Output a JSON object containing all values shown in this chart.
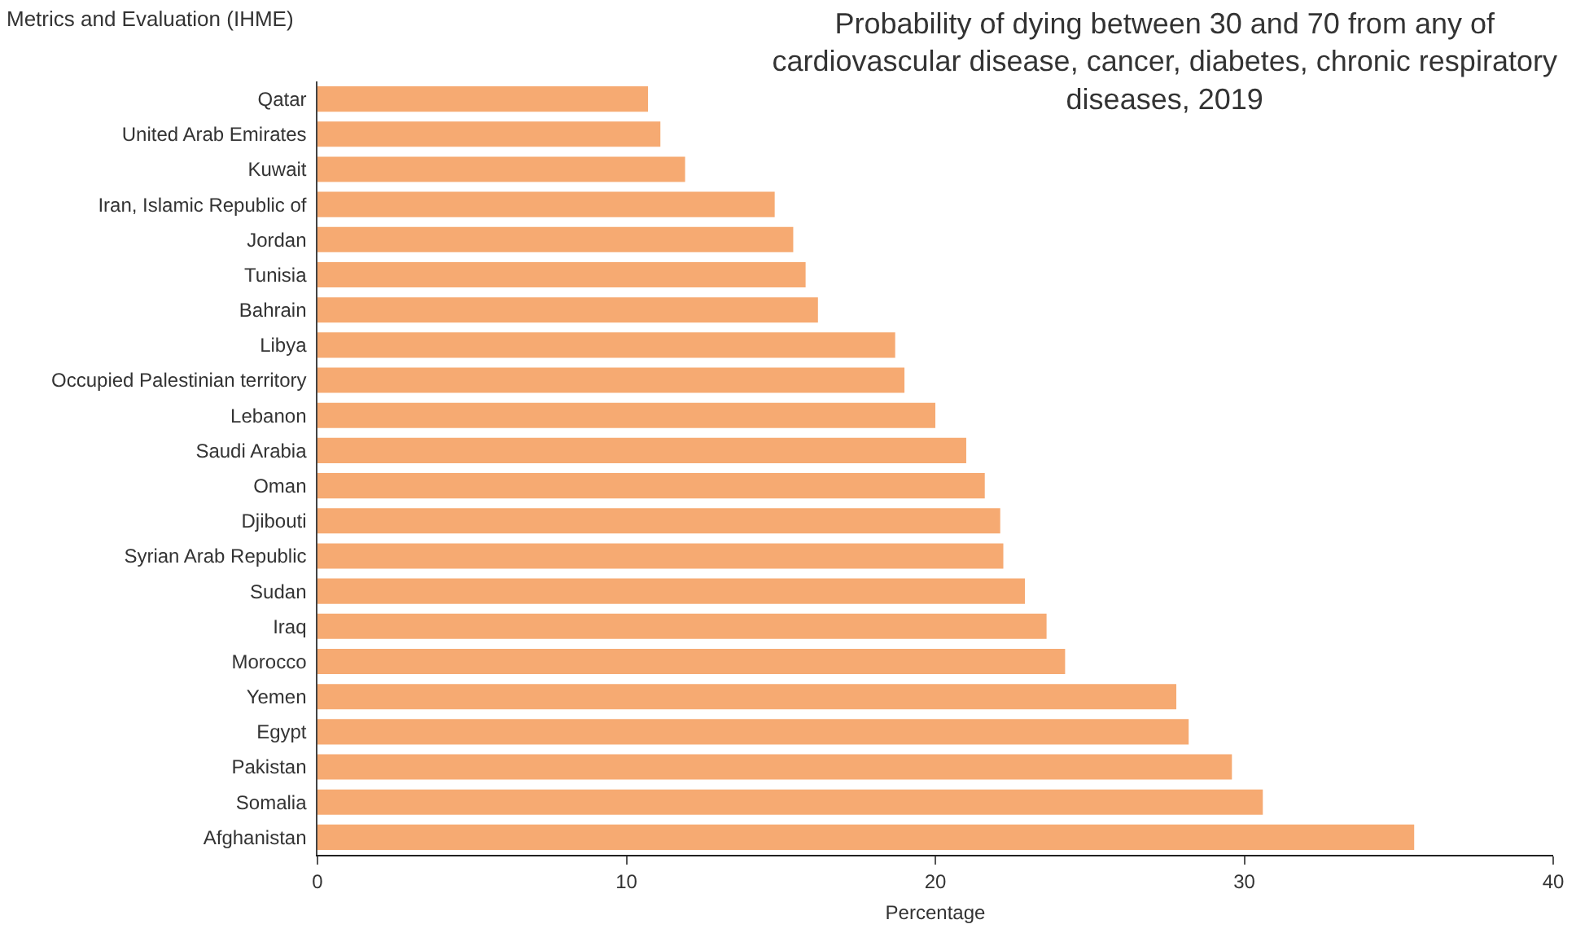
{
  "chart_data": {
    "type": "bar",
    "orientation": "horizontal",
    "title": "Probability of dying between 30 and 70 from any of cardiovascular disease, cancer, diabetes, chronic respiratory diseases, 2019",
    "xlabel": "Percentage",
    "annotations": [
      "Metrics and Evaluation (IHME)"
    ],
    "categories": [
      "Qatar",
      "United Arab Emirates",
      "Kuwait",
      "Iran, Islamic Republic of",
      "Jordan",
      "Tunisia",
      "Bahrain",
      "Libya",
      "Occupied Palestinian territory",
      "Lebanon",
      "Saudi Arabia",
      "Oman",
      "Djibouti",
      "Syrian Arab Republic",
      "Sudan",
      "Iraq",
      "Morocco",
      "Yemen",
      "Egypt",
      "Pakistan",
      "Somalia",
      "Afghanistan"
    ],
    "values": [
      10.7,
      11.1,
      11.9,
      14.8,
      15.4,
      15.8,
      16.2,
      18.7,
      19.0,
      20.0,
      21.0,
      21.6,
      22.1,
      22.2,
      22.9,
      23.6,
      24.2,
      27.8,
      28.2,
      29.6,
      30.6,
      35.5
    ],
    "color": "#f6aa72",
    "xlim": [
      0,
      40
    ],
    "xticks": [
      0,
      10,
      20,
      30,
      40
    ],
    "grid": false
  }
}
